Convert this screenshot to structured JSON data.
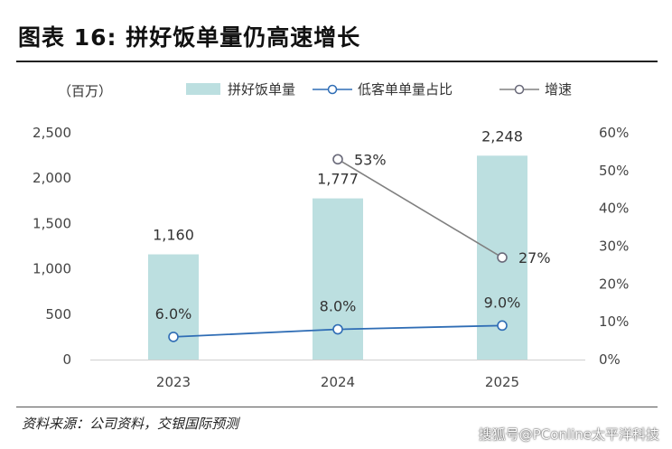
{
  "title": "图表 16: 拼好饭单量仍高速增长",
  "unit_label": "（百万）",
  "legend": {
    "bar": "拼好饭单量",
    "line_share": "低客单单量占比",
    "line_growth": "增速"
  },
  "source": "资料来源：公司资料，交银国际预测",
  "watermark": "搜狐号@PConline太平洋科技",
  "colors": {
    "bar": "#bcdfe0",
    "share_line": "#2f6db5",
    "growth_line": "#808080",
    "growth_marker": "#6a6a7a"
  },
  "chart_data": {
    "type": "bar",
    "categories": [
      "2023",
      "2024",
      "2025"
    ],
    "series": [
      {
        "name": "拼好饭单量",
        "type": "bar",
        "axis": "left",
        "values": [
          1160,
          1777,
          2248
        ],
        "labels": [
          "1,160",
          "1,777",
          "2,248"
        ]
      },
      {
        "name": "低客单单量占比",
        "type": "line",
        "axis": "right",
        "values": [
          6.0,
          8.0,
          9.0
        ],
        "labels": [
          "6.0%",
          "8.0%",
          "9.0%"
        ]
      },
      {
        "name": "增速",
        "type": "line",
        "axis": "right",
        "values": [
          null,
          53,
          27
        ],
        "labels": [
          "",
          "53%",
          "27%"
        ]
      }
    ],
    "y_left": {
      "min": 0,
      "max": 2500,
      "ticks": [
        0,
        500,
        1000,
        1500,
        2000,
        2500
      ],
      "tick_labels": [
        "0",
        "500",
        "1,000",
        "1,500",
        "2,000",
        "2,500"
      ]
    },
    "y_right": {
      "min": 0,
      "max": 60,
      "ticks": [
        0,
        10,
        20,
        30,
        40,
        50,
        60
      ],
      "tick_labels": [
        "0%",
        "10%",
        "20%",
        "30%",
        "40%",
        "50%",
        "60%"
      ]
    },
    "ylabel": "（百万）",
    "grid": false,
    "legend_position": "top"
  }
}
